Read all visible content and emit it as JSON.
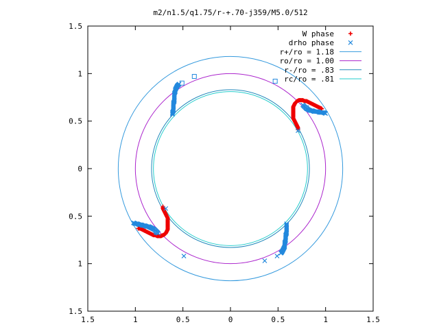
{
  "chart_data": {
    "type": "scatter",
    "title": "m2/n1.5/q1.75/r-+.70-j359/M5.0/512",
    "xlabel": "",
    "ylabel": "",
    "xlim": [
      -1.5,
      1.5
    ],
    "ylim": [
      -1.5,
      1.5
    ],
    "x_tick_values": [
      -1.5,
      -1,
      -0.5,
      0,
      0.5,
      1,
      1.5
    ],
    "x_tick_labels": [
      "1.5",
      "1",
      "0.5",
      "0",
      "0.5",
      "1",
      "1.5"
    ],
    "y_tick_values": [
      1.5,
      1,
      0.5,
      0,
      -0.5,
      -1,
      -1.5
    ],
    "y_tick_labels": [
      "1.5",
      "1",
      "0.5",
      "0",
      "0.5",
      "1",
      "1.5"
    ],
    "grid": false,
    "legend_position": "top-right",
    "circles": [
      {
        "name": "r+/ro = 1.18",
        "radius": 1.18,
        "color": "#3399dd"
      },
      {
        "name": "ro/ro = 1.00",
        "radius": 1.0,
        "color": "#aa22cc"
      },
      {
        "name": "r-/ro = .83",
        "radius": 0.83,
        "color": "#2288bb"
      },
      {
        "name": "rc/ro = .81",
        "radius": 0.81,
        "color": "#22cccc"
      }
    ],
    "series": [
      {
        "name": "W phase",
        "marker": "plus",
        "color": "#ee0000",
        "segments": [
          [
            [
              0.71,
              0.41
            ],
            [
              0.71,
              0.43
            ],
            [
              0.7,
              0.45
            ],
            [
              0.69,
              0.47
            ],
            [
              0.68,
              0.49
            ],
            [
              0.67,
              0.51
            ],
            [
              0.66,
              0.53
            ],
            [
              0.66,
              0.55
            ],
            [
              0.66,
              0.57
            ],
            [
              0.66,
              0.59
            ],
            [
              0.66,
              0.61
            ],
            [
              0.66,
              0.63
            ],
            [
              0.66,
              0.65
            ],
            [
              0.67,
              0.67
            ],
            [
              0.68,
              0.69
            ],
            [
              0.69,
              0.7
            ],
            [
              0.7,
              0.71
            ],
            [
              0.72,
              0.72
            ],
            [
              0.74,
              0.72
            ],
            [
              0.76,
              0.72
            ],
            [
              0.78,
              0.71
            ],
            [
              0.8,
              0.71
            ],
            [
              0.82,
              0.7
            ],
            [
              0.84,
              0.69
            ],
            [
              0.86,
              0.68
            ],
            [
              0.88,
              0.67
            ],
            [
              0.9,
              0.66
            ],
            [
              0.92,
              0.65
            ],
            [
              0.94,
              0.64
            ],
            [
              0.96,
              0.63
            ]
          ],
          [
            [
              -0.71,
              -0.4
            ],
            [
              -0.71,
              -0.42
            ],
            [
              -0.7,
              -0.44
            ],
            [
              -0.69,
              -0.46
            ],
            [
              -0.68,
              -0.48
            ],
            [
              -0.67,
              -0.5
            ],
            [
              -0.66,
              -0.52
            ],
            [
              -0.66,
              -0.54
            ],
            [
              -0.66,
              -0.56
            ],
            [
              -0.66,
              -0.58
            ],
            [
              -0.66,
              -0.6
            ],
            [
              -0.66,
              -0.62
            ],
            [
              -0.66,
              -0.64
            ],
            [
              -0.67,
              -0.66
            ],
            [
              -0.68,
              -0.68
            ],
            [
              -0.69,
              -0.69
            ],
            [
              -0.71,
              -0.7
            ],
            [
              -0.73,
              -0.71
            ],
            [
              -0.75,
              -0.71
            ],
            [
              -0.77,
              -0.71
            ],
            [
              -0.79,
              -0.7
            ],
            [
              -0.81,
              -0.7
            ],
            [
              -0.83,
              -0.69
            ],
            [
              -0.85,
              -0.68
            ],
            [
              -0.87,
              -0.67
            ],
            [
              -0.89,
              -0.66
            ],
            [
              -0.91,
              -0.65
            ],
            [
              -0.93,
              -0.64
            ],
            [
              -0.95,
              -0.63
            ],
            [
              -0.97,
              -0.63
            ]
          ]
        ]
      },
      {
        "name": "drho phase",
        "marker": "cross",
        "color": "#2288dd",
        "segments": [
          [
            [
              -0.61,
              0.57
            ],
            [
              -0.61,
              0.59
            ],
            [
              -0.6,
              0.61
            ],
            [
              -0.6,
              0.63
            ],
            [
              -0.6,
              0.65
            ],
            [
              -0.6,
              0.67
            ],
            [
              -0.6,
              0.69
            ],
            [
              -0.59,
              0.71
            ],
            [
              -0.59,
              0.73
            ],
            [
              -0.59,
              0.75
            ],
            [
              -0.59,
              0.77
            ],
            [
              -0.59,
              0.79
            ],
            [
              -0.58,
              0.81
            ],
            [
              -0.58,
              0.83
            ],
            [
              -0.57,
              0.85
            ],
            [
              -0.56,
              0.87
            ],
            [
              -0.55,
              0.88
            ],
            [
              -0.54,
              0.89
            ]
          ],
          [
            [
              0.59,
              -0.58
            ],
            [
              0.59,
              -0.6
            ],
            [
              0.59,
              -0.62
            ],
            [
              0.59,
              -0.64
            ],
            [
              0.59,
              -0.66
            ],
            [
              0.59,
              -0.68
            ],
            [
              0.58,
              -0.7
            ],
            [
              0.58,
              -0.72
            ],
            [
              0.58,
              -0.74
            ],
            [
              0.58,
              -0.76
            ],
            [
              0.57,
              -0.78
            ],
            [
              0.57,
              -0.8
            ],
            [
              0.57,
              -0.82
            ],
            [
              0.56,
              -0.84
            ],
            [
              0.55,
              -0.86
            ],
            [
              0.54,
              -0.88
            ],
            [
              0.53,
              -0.89
            ]
          ],
          [
            [
              0.76,
              0.67
            ],
            [
              0.78,
              0.65
            ],
            [
              0.8,
              0.63
            ],
            [
              0.82,
              0.62
            ],
            [
              0.84,
              0.61
            ],
            [
              0.86,
              0.61
            ],
            [
              0.88,
              0.6
            ],
            [
              0.9,
              0.6
            ],
            [
              0.92,
              0.6
            ],
            [
              0.94,
              0.59
            ],
            [
              0.96,
              0.59
            ],
            [
              0.98,
              0.59
            ],
            [
              1.0,
              0.58
            ]
          ],
          [
            [
              -0.76,
              -0.68
            ],
            [
              -0.78,
              -0.66
            ],
            [
              -0.8,
              -0.64
            ],
            [
              -0.82,
              -0.63
            ],
            [
              -0.84,
              -0.62
            ],
            [
              -0.86,
              -0.61
            ],
            [
              -0.88,
              -0.61
            ],
            [
              -0.9,
              -0.6
            ],
            [
              -0.92,
              -0.6
            ],
            [
              -0.94,
              -0.59
            ],
            [
              -0.96,
              -0.59
            ],
            [
              -0.98,
              -0.58
            ],
            [
              -1.0,
              -0.58
            ],
            [
              -1.02,
              -0.57
            ]
          ]
        ],
        "scattered": [
          [
            -0.49,
            -0.92
          ],
          [
            0.36,
            -0.97
          ],
          [
            0.49,
            -0.92
          ],
          [
            0.71,
            0.4
          ],
          [
            -0.68,
            -0.42
          ]
        ]
      }
    ],
    "square_markers": {
      "color": "#2288dd",
      "points": [
        [
          -0.38,
          0.97
        ],
        [
          -0.51,
          0.9
        ],
        [
          0.47,
          0.92
        ],
        [
          -0.78,
          -0.67
        ],
        [
          0.8,
          0.64
        ]
      ]
    },
    "legend": [
      {
        "label": "W phase",
        "kind": "plus",
        "color": "#ee0000"
      },
      {
        "label": "drho phase",
        "kind": "cross",
        "color": "#2288dd"
      },
      {
        "label": "r+/ro = 1.18",
        "kind": "line",
        "color": "#3399dd"
      },
      {
        "label": "ro/ro = 1.00",
        "kind": "line",
        "color": "#aa22cc"
      },
      {
        "label": "r-/ro = .83",
        "kind": "line",
        "color": "#2288bb"
      },
      {
        "label": "rc/ro = .81",
        "kind": "line",
        "color": "#22cccc"
      }
    ]
  }
}
